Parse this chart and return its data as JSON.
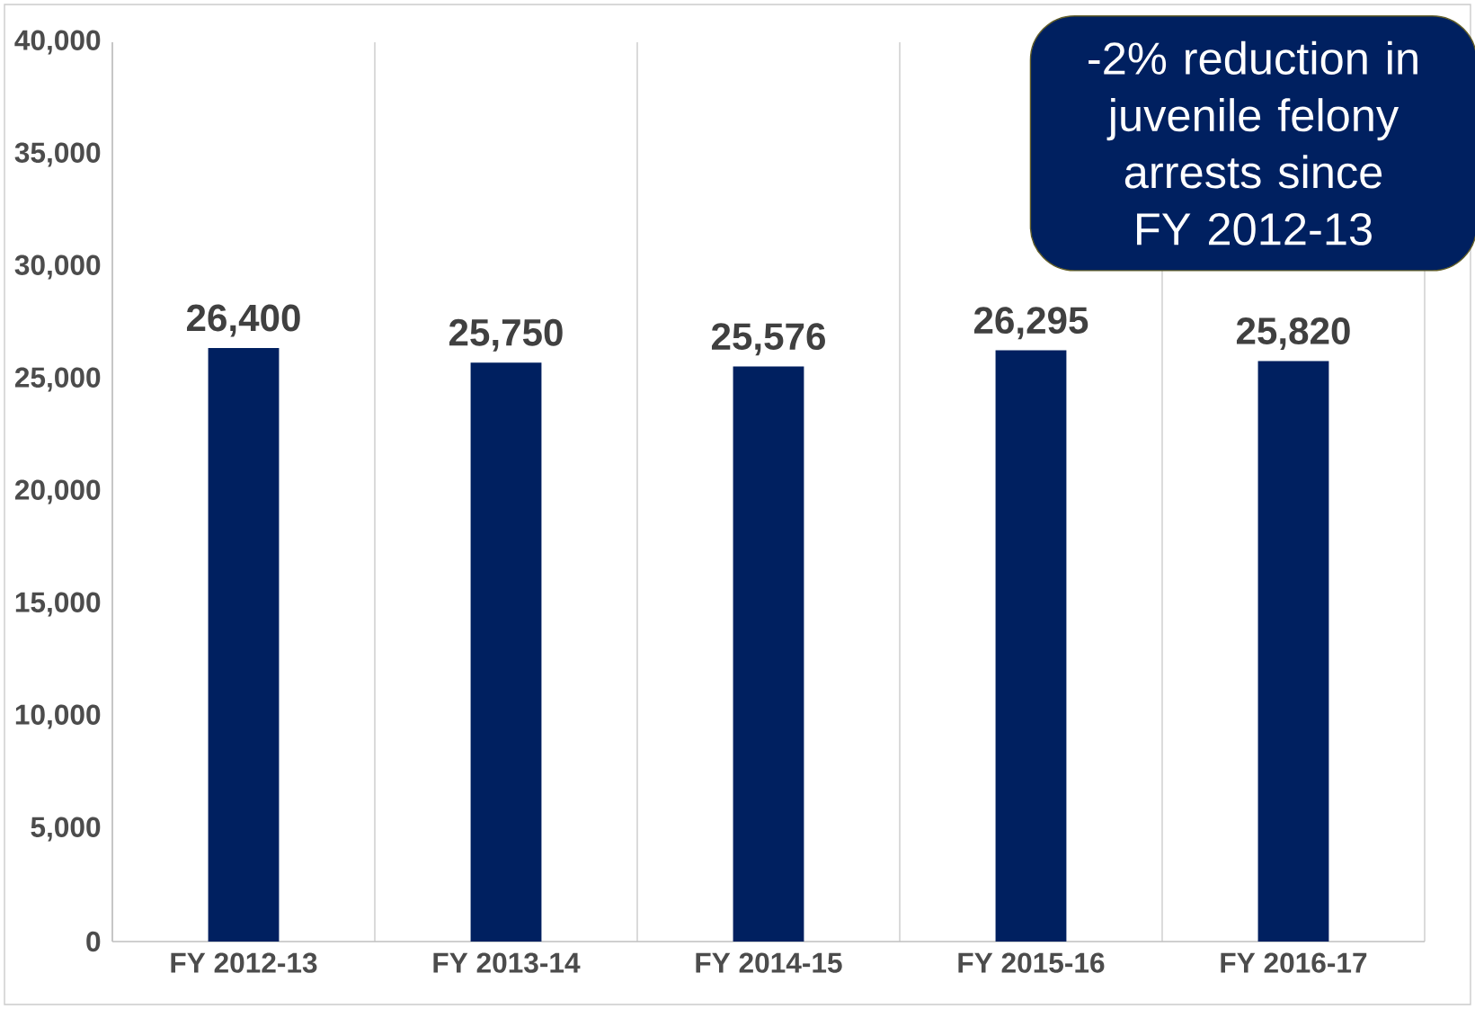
{
  "chart_data": {
    "type": "bar",
    "categories": [
      "FY 2012-13",
      "FY 2013-14",
      "FY 2014-15",
      "FY 2015-16",
      "FY 2016-17"
    ],
    "values": [
      26400,
      25750,
      25576,
      26295,
      25820
    ],
    "value_labels": [
      "26,400",
      "25,750",
      "25,576",
      "26,295",
      "25,820"
    ],
    "color": "#002060",
    "ylim": [
      0,
      40000
    ],
    "yticks": [
      {
        "value": 0,
        "label": "0"
      },
      {
        "value": 5000,
        "label": "5,000"
      },
      {
        "value": 10000,
        "label": "10,000"
      },
      {
        "value": 15000,
        "label": "15,000"
      },
      {
        "value": 20000,
        "label": "20,000"
      },
      {
        "value": 25000,
        "label": "25,000"
      },
      {
        "value": 30000,
        "label": "30,000"
      },
      {
        "value": 35000,
        "label": "35,000"
      },
      {
        "value": 40000,
        "label": "40,000"
      }
    ],
    "grid": "x",
    "annotations": [
      "-2% reduction in juvenile felony arrests since FY 2012-13"
    ]
  }
}
